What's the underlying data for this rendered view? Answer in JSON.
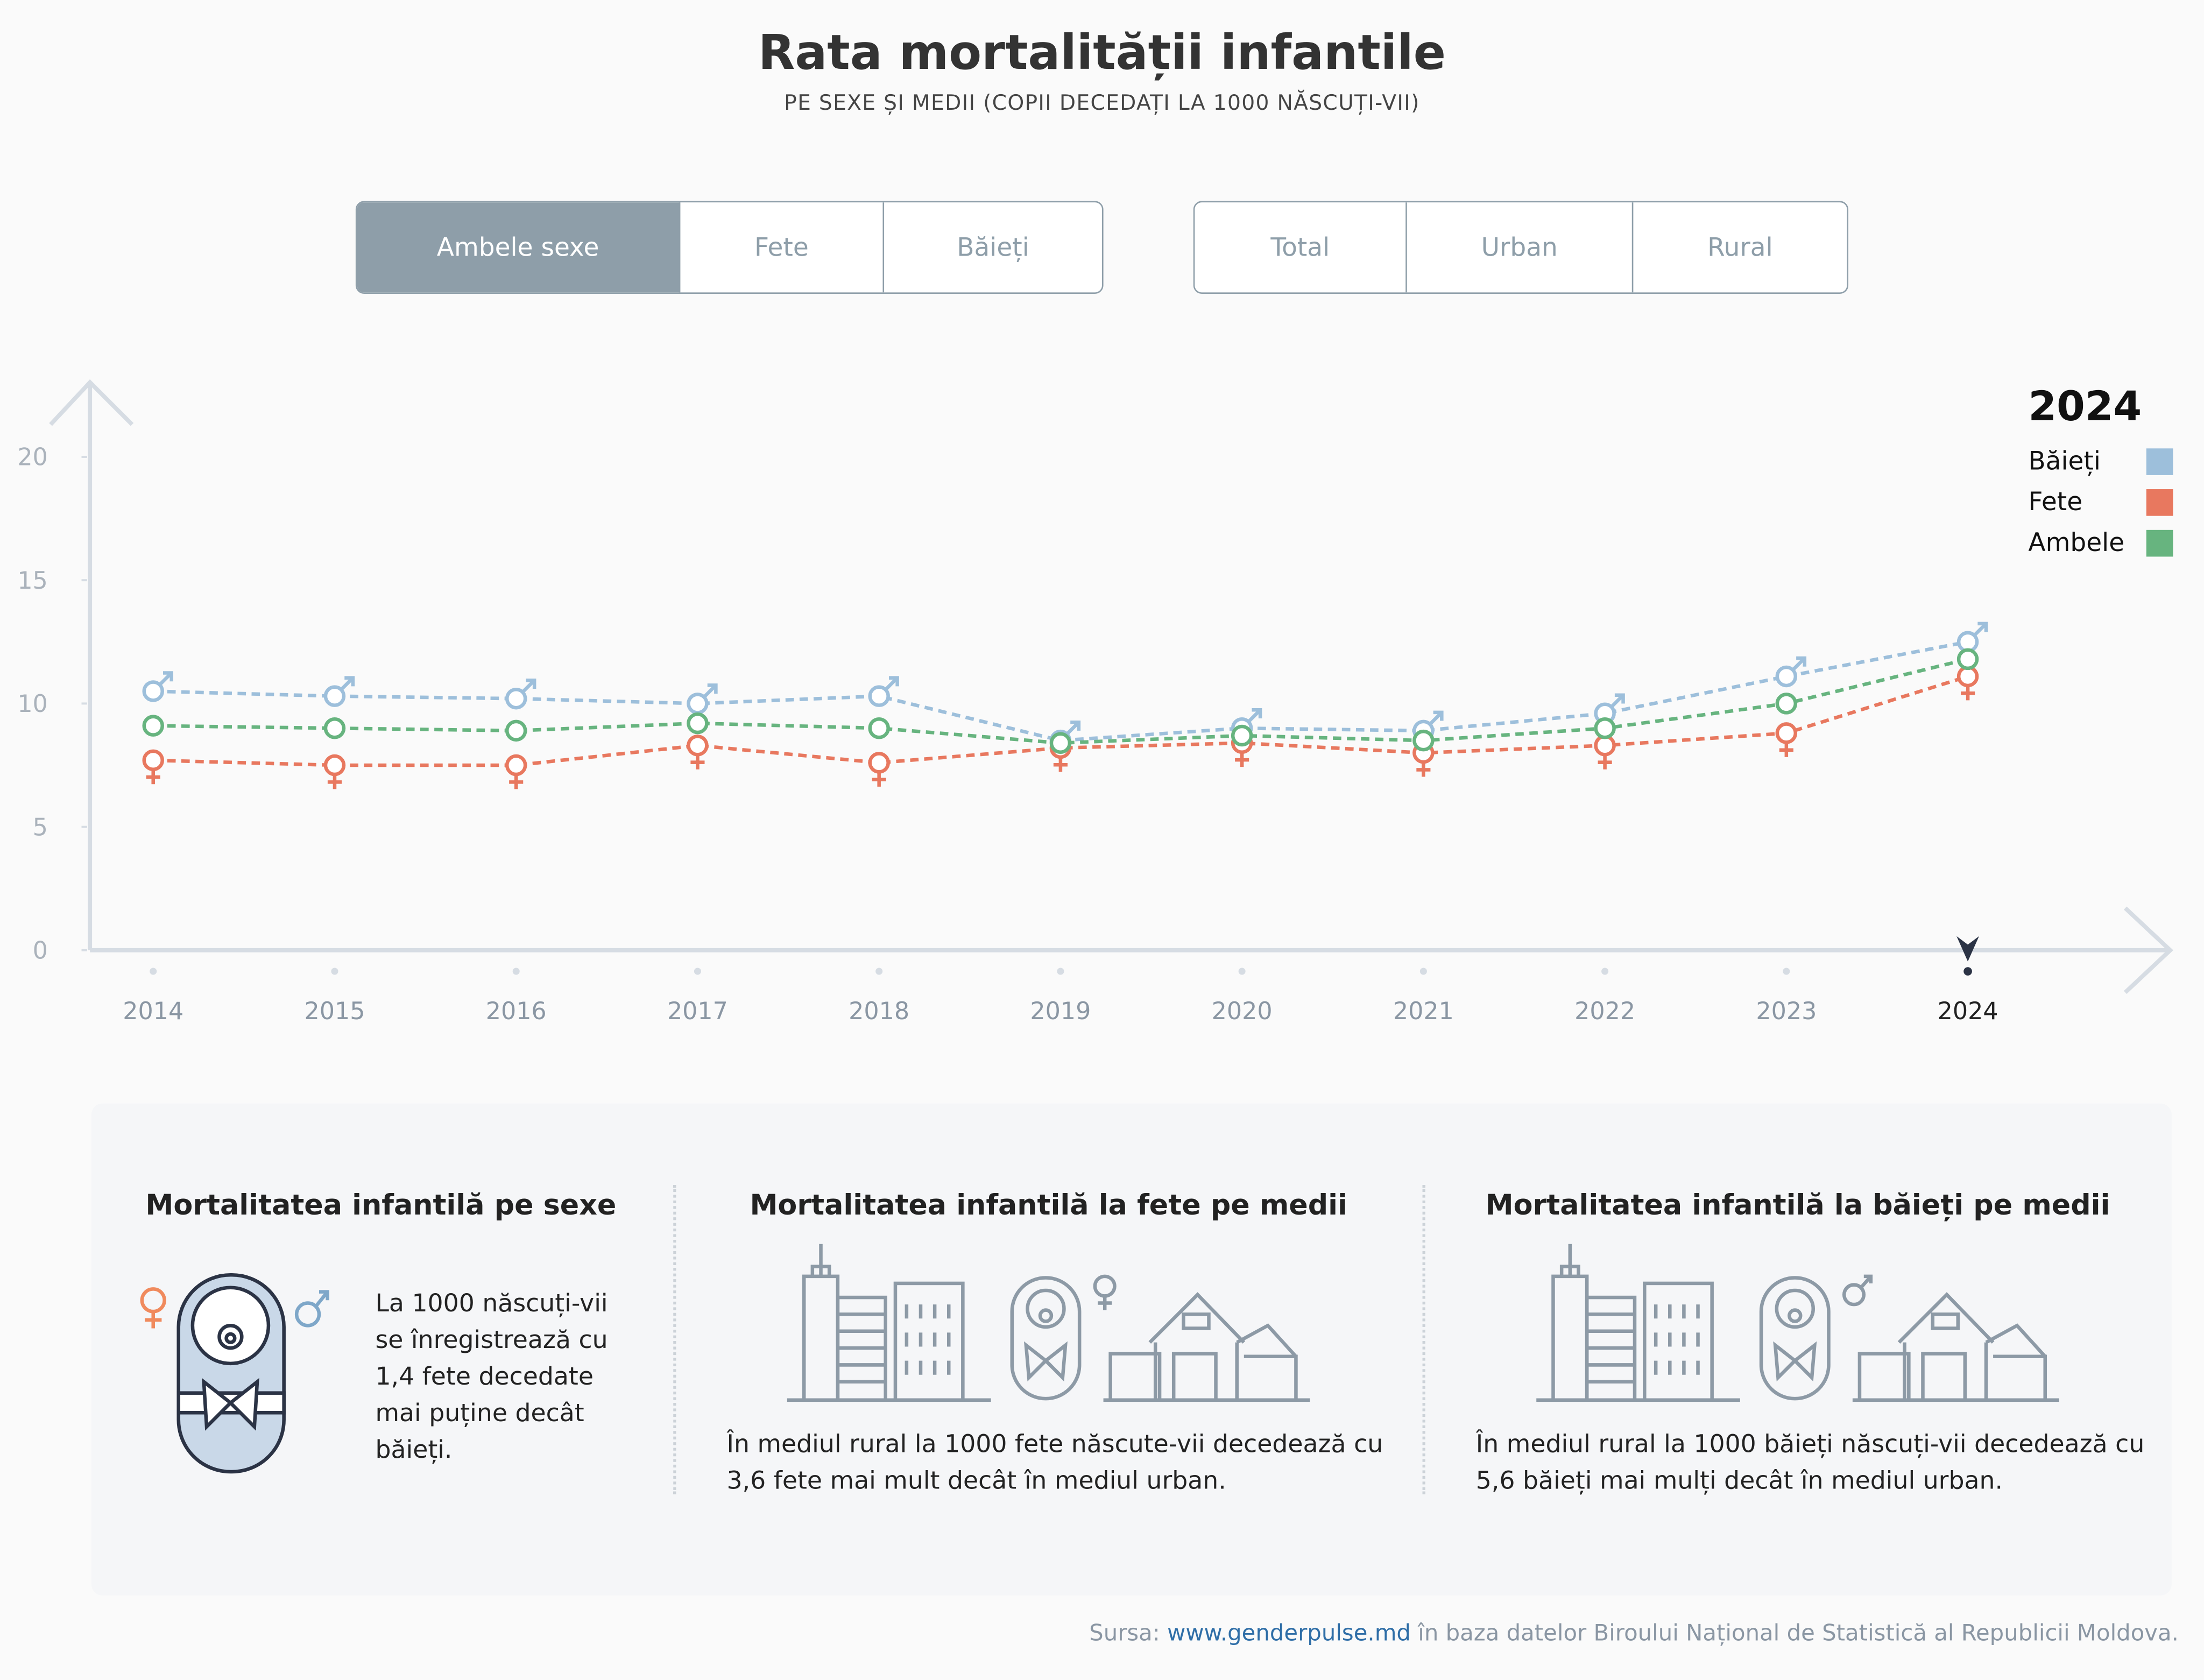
{
  "title": "Rata mortalității infantile",
  "subtitle": "PE SEXE ȘI MEDII (COPII DECEDAȚI LA 1000 NĂSCUȚI-VII)",
  "sex_filter": {
    "options": [
      "Ambele sexe",
      "Fete",
      "Băieți"
    ],
    "selected": "Ambele sexe"
  },
  "area_filter": {
    "options": [
      "Total",
      "Urban",
      "Rural"
    ]
  },
  "legend": {
    "year": "2024",
    "items": [
      "Băieți",
      "Fete",
      "Ambele"
    ]
  },
  "chart_data": {
    "type": "line",
    "x": [
      "2014",
      "2015",
      "2016",
      "2017",
      "2018",
      "2019",
      "2020",
      "2021",
      "2022",
      "2023",
      "2024"
    ],
    "ylim": [
      0,
      20
    ],
    "yticks": [
      0,
      5,
      10,
      15,
      20
    ],
    "highlighted_x": "2024",
    "series": [
      {
        "name": "Băieți",
        "color": "#9dbfdb",
        "marker": "male-symbol",
        "values": [
          10.5,
          10.3,
          10.2,
          10.0,
          10.3,
          8.5,
          9.0,
          8.9,
          9.6,
          11.1,
          12.5
        ]
      },
      {
        "name": "Fete",
        "color": "#e8785f",
        "marker": "female-symbol",
        "values": [
          7.7,
          7.5,
          7.5,
          8.3,
          7.6,
          8.2,
          8.4,
          8.0,
          8.3,
          8.8,
          11.1
        ]
      },
      {
        "name": "Ambele",
        "color": "#67b47f",
        "marker": "circle",
        "values": [
          9.1,
          9.0,
          8.9,
          9.2,
          9.0,
          8.4,
          8.7,
          8.5,
          9.0,
          10.0,
          11.8
        ]
      }
    ]
  },
  "panel": {
    "sex": {
      "title": "Mortalitatea infantilă pe sexe",
      "text": "La 1000 născuți-vii se înregistrează cu 1,4 fete decedate mai puține decât băieți."
    },
    "girls": {
      "title": "Mortalitatea infantilă la fete pe medii",
      "text": "În mediul rural la 1000 fete născute-vii decedează cu 3,6 fete mai mult decât în mediul urban."
    },
    "boys": {
      "title": "Mortalitatea infantilă la băieți pe medii",
      "text": "În mediul rural la 1000 băieți născuți-vii decedează cu 5,6 băieți mai mulți decât în mediul urban."
    }
  },
  "source": {
    "prefix": "Sursa:",
    "link": "www.genderpulse.md",
    "suffix": "în baza datelor Biroului Național de Statistică al Republicii Moldova."
  }
}
